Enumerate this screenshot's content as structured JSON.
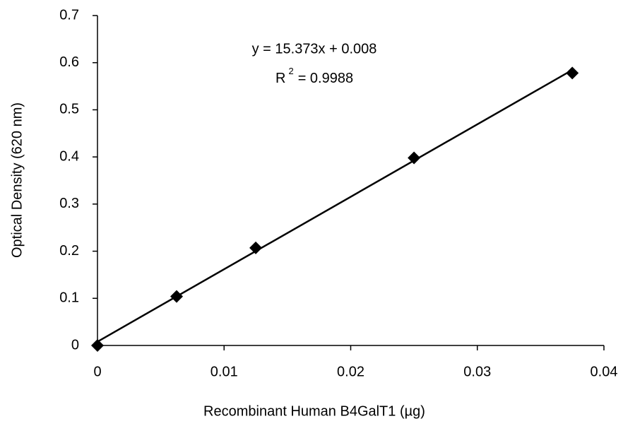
{
  "chart_data": {
    "type": "scatter",
    "x_label": "Recombinant Human B4GalT1 (µg)",
    "y_label": "Optical Density (620 nm)",
    "annotations": [
      "y = 15.373x + 0.008",
      {
        "base": "R",
        "sup": "2",
        "rest": "= 0.9988"
      }
    ],
    "x": [
      0,
      0.00625,
      0.0125,
      0.025,
      0.0375
    ],
    "values": [
      0,
      0.104,
      0.207,
      0.398,
      0.578
    ],
    "color": "#000000",
    "trendline": {
      "slope": 15.373,
      "intercept": 0.008
    },
    "xlim": [
      0,
      0.04
    ],
    "xticks": [
      0,
      0.01,
      0.02,
      0.03,
      0.04
    ],
    "ylim": [
      0,
      0.7
    ],
    "yticks": [
      0,
      0.1,
      0.2,
      0.3,
      0.4,
      0.5,
      0.6,
      0.7
    ],
    "grid": false
  }
}
